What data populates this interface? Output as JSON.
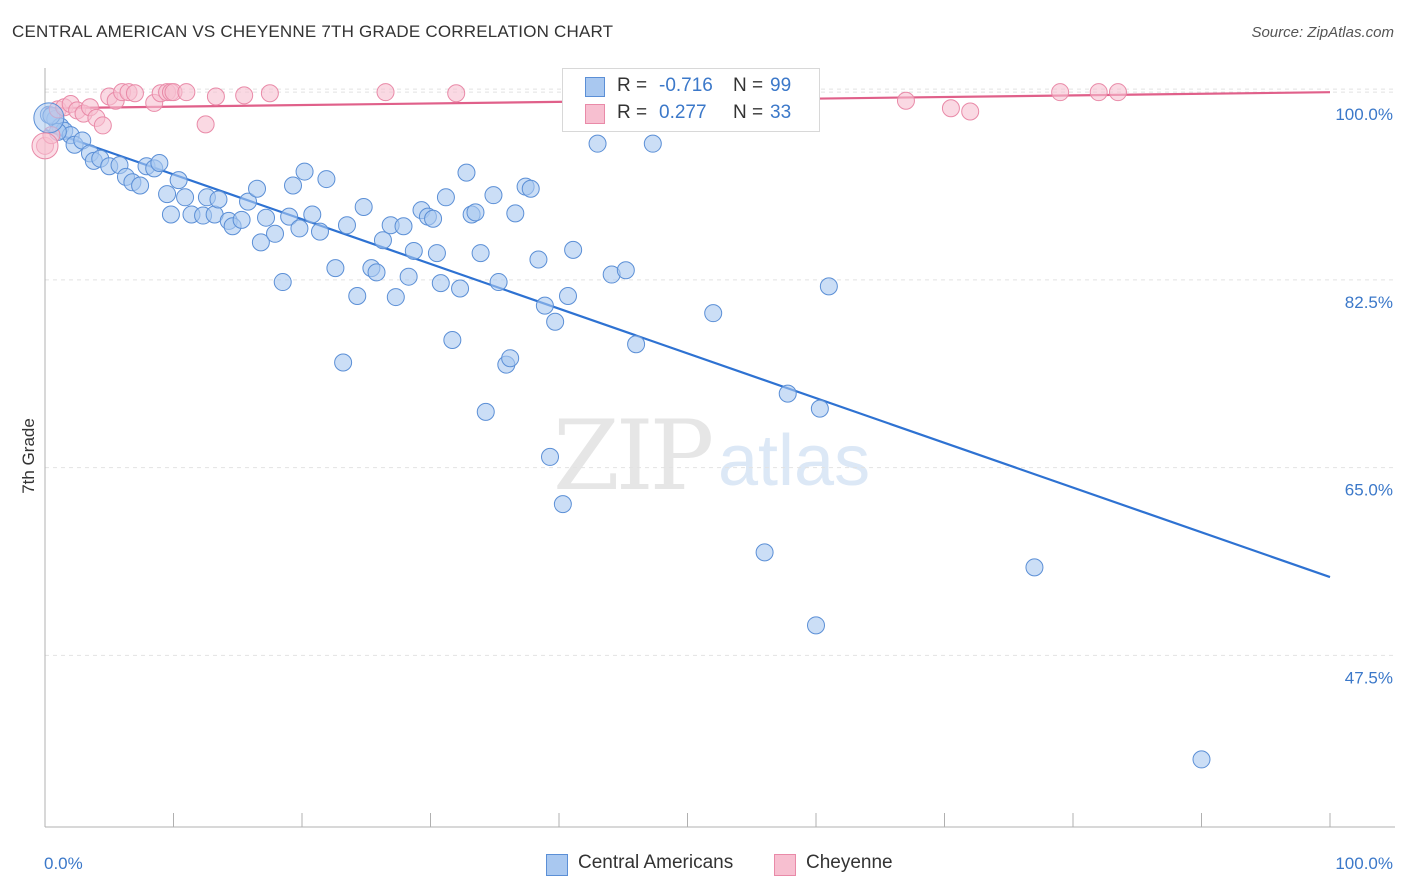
{
  "title": "CENTRAL AMERICAN VS CHEYENNE 7TH GRADE CORRELATION CHART",
  "source": "Source: ZipAtlas.com",
  "watermark": {
    "zip": "ZIP",
    "atlas": "atlas"
  },
  "legend": {
    "rows": [
      {
        "r_label": "R =",
        "r_value": "-0.716",
        "n_label": "N =",
        "n_value": "99"
      },
      {
        "r_label": "R =",
        "r_value": "0.277",
        "n_label": "N =",
        "n_value": "33"
      }
    ]
  },
  "bottom_legend": [
    "Central Americans",
    "Cheyenne"
  ],
  "colors": {
    "blue_fill": "#a9c8f0",
    "blue_stroke": "#5b8fd6",
    "blue_line": "#2e72d2",
    "pink_fill": "#f7bfd0",
    "pink_stroke": "#e98aa8",
    "pink_line": "#e0608a",
    "grid": "#e2e2e2",
    "tick_text": "#3b78c9"
  },
  "chart_data": {
    "type": "scatter",
    "title": "CENTRAL AMERICAN VS CHEYENNE 7TH GRADE CORRELATION CHART",
    "xlabel": "",
    "ylabel": "7th Grade",
    "xlim": [
      0,
      100
    ],
    "ylim": [
      31.5,
      103
    ],
    "x_tick_labels": [
      "0.0%",
      "100.0%"
    ],
    "y_ticks": [
      47.5,
      65.0,
      82.5,
      100.0
    ],
    "y_tick_labels": [
      "47.5%",
      "65.0%",
      "82.5%",
      "100.0%"
    ],
    "grid": true,
    "legend_position": "top-center",
    "series": [
      {
        "name": "Central Americans",
        "r": -0.716,
        "n": 99,
        "trend": [
          [
            0,
            96.5
          ],
          [
            100,
            54.8
          ]
        ],
        "points": [
          [
            0.3,
            97.9
          ],
          [
            0.8,
            97.5
          ],
          [
            1.2,
            96.8
          ],
          [
            1.5,
            96.4
          ],
          [
            2.0,
            96.0
          ],
          [
            2.3,
            95.1
          ],
          [
            2.9,
            95.5
          ],
          [
            3.5,
            94.3
          ],
          [
            3.8,
            93.6
          ],
          [
            4.3,
            93.8
          ],
          [
            5.0,
            93.1
          ],
          [
            5.8,
            93.2
          ],
          [
            6.3,
            92.1
          ],
          [
            6.8,
            91.6
          ],
          [
            7.4,
            91.3
          ],
          [
            7.9,
            93.1
          ],
          [
            8.5,
            92.9
          ],
          [
            8.9,
            93.4
          ],
          [
            9.5,
            90.5
          ],
          [
            9.8,
            88.6
          ],
          [
            10.4,
            91.8
          ],
          [
            10.9,
            90.2
          ],
          [
            11.4,
            88.6
          ],
          [
            12.3,
            88.5
          ],
          [
            12.6,
            90.2
          ],
          [
            13.2,
            88.6
          ],
          [
            13.5,
            90.0
          ],
          [
            14.3,
            88.0
          ],
          [
            14.6,
            87.5
          ],
          [
            15.3,
            88.1
          ],
          [
            15.8,
            89.8
          ],
          [
            16.5,
            91.0
          ],
          [
            16.8,
            86.0
          ],
          [
            17.2,
            88.3
          ],
          [
            17.9,
            86.8
          ],
          [
            18.5,
            82.3
          ],
          [
            19.0,
            88.4
          ],
          [
            19.3,
            91.3
          ],
          [
            19.8,
            87.3
          ],
          [
            20.2,
            92.6
          ],
          [
            20.8,
            88.6
          ],
          [
            21.4,
            87.0
          ],
          [
            21.9,
            91.9
          ],
          [
            22.6,
            83.6
          ],
          [
            23.2,
            74.8
          ],
          [
            23.5,
            87.6
          ],
          [
            24.3,
            81.0
          ],
          [
            24.8,
            89.3
          ],
          [
            25.4,
            83.6
          ],
          [
            25.8,
            83.2
          ],
          [
            26.3,
            86.2
          ],
          [
            26.9,
            87.6
          ],
          [
            27.3,
            80.9
          ],
          [
            27.9,
            87.5
          ],
          [
            28.3,
            82.8
          ],
          [
            28.7,
            85.2
          ],
          [
            29.3,
            89.0
          ],
          [
            29.8,
            88.4
          ],
          [
            30.2,
            88.2
          ],
          [
            30.5,
            85.0
          ],
          [
            30.8,
            82.2
          ],
          [
            31.2,
            90.2
          ],
          [
            31.7,
            76.9
          ],
          [
            32.3,
            81.7
          ],
          [
            32.8,
            92.5
          ],
          [
            33.2,
            88.6
          ],
          [
            33.5,
            88.8
          ],
          [
            33.9,
            85.0
          ],
          [
            34.3,
            70.2
          ],
          [
            34.9,
            90.4
          ],
          [
            35.3,
            82.3
          ],
          [
            35.9,
            74.6
          ],
          [
            36.2,
            75.2
          ],
          [
            36.6,
            88.7
          ],
          [
            37.4,
            91.2
          ],
          [
            37.8,
            91.0
          ],
          [
            38.4,
            84.4
          ],
          [
            38.9,
            80.1
          ],
          [
            39.3,
            66.0
          ],
          [
            39.7,
            78.6
          ],
          [
            40.3,
            61.6
          ],
          [
            40.7,
            81.0
          ],
          [
            41.1,
            85.3
          ],
          [
            43.0,
            95.2
          ],
          [
            44.1,
            83.0
          ],
          [
            45.2,
            83.4
          ],
          [
            46.0,
            76.5
          ],
          [
            47.3,
            95.2
          ],
          [
            48.0,
            99.1
          ],
          [
            52.0,
            79.4
          ],
          [
            56.0,
            57.1
          ],
          [
            57.8,
            71.9
          ],
          [
            60.0,
            50.3
          ],
          [
            60.3,
            70.5
          ],
          [
            61.0,
            81.9
          ],
          [
            77.0,
            55.7
          ],
          [
            90.0,
            37.8
          ],
          [
            0.5,
            97.8
          ],
          [
            1.0,
            96.3
          ]
        ]
      },
      {
        "name": "Cheyenne",
        "r": 0.277,
        "n": 33,
        "trend": [
          [
            0,
            98.5
          ],
          [
            100,
            100.0
          ]
        ],
        "points": [
          [
            0.0,
            95.0
          ],
          [
            0.5,
            96.0
          ],
          [
            1.0,
            98.4
          ],
          [
            1.5,
            98.6
          ],
          [
            2.0,
            98.9
          ],
          [
            2.5,
            98.3
          ],
          [
            3.0,
            98.0
          ],
          [
            3.5,
            98.6
          ],
          [
            4.0,
            97.6
          ],
          [
            4.5,
            96.9
          ],
          [
            5.0,
            99.6
          ],
          [
            5.5,
            99.2
          ],
          [
            6.0,
            100.0
          ],
          [
            6.5,
            100.0
          ],
          [
            7.0,
            99.9
          ],
          [
            8.5,
            99.0
          ],
          [
            9.0,
            99.9
          ],
          [
            9.5,
            100.0
          ],
          [
            9.8,
            100.0
          ],
          [
            10.0,
            100.0
          ],
          [
            11.0,
            100.0
          ],
          [
            12.5,
            97.0
          ],
          [
            13.3,
            99.6
          ],
          [
            15.5,
            99.7
          ],
          [
            17.5,
            99.9
          ],
          [
            26.5,
            100.0
          ],
          [
            32.0,
            99.9
          ],
          [
            67.0,
            99.2
          ],
          [
            70.5,
            98.5
          ],
          [
            72.0,
            98.2
          ],
          [
            79.0,
            100.0
          ],
          [
            82.0,
            100.0
          ],
          [
            83.5,
            100.0
          ]
        ]
      }
    ]
  }
}
